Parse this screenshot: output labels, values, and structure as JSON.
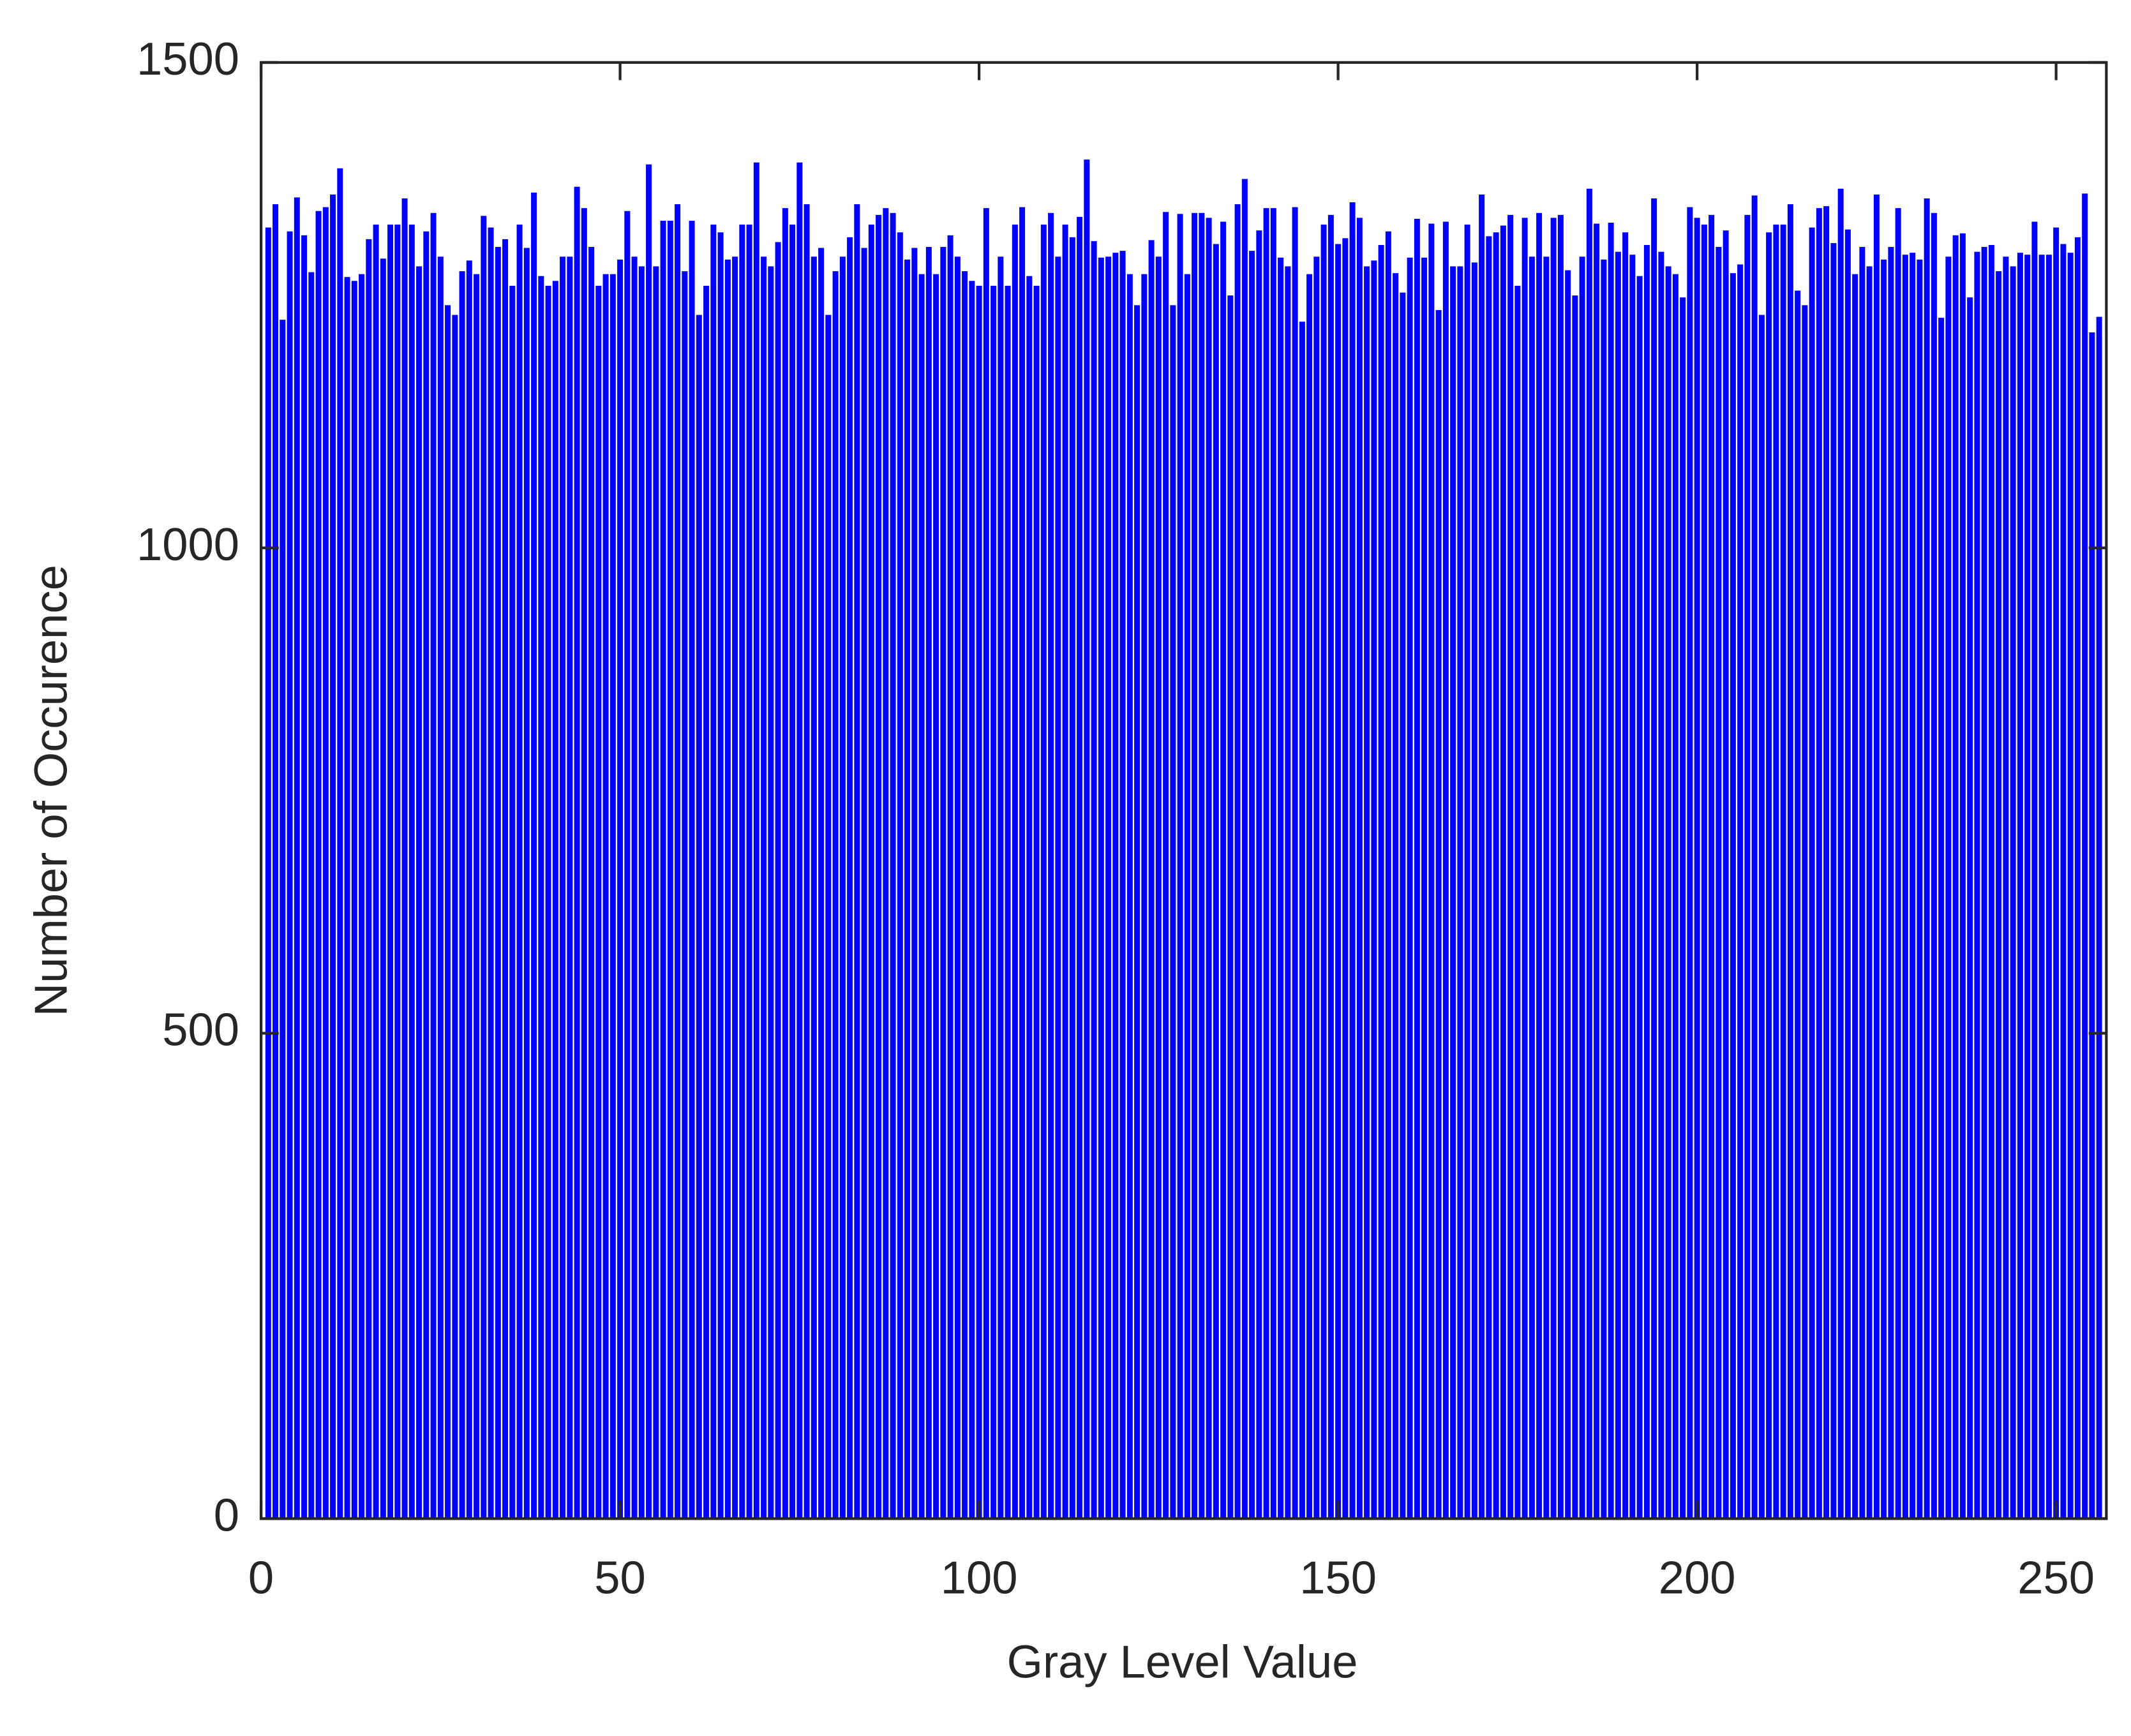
{
  "chart_data": {
    "type": "bar",
    "x_label": "Gray Level Value",
    "y_label": "Number of Occurence",
    "color": "#0000ff",
    "xlim": [
      0,
      257
    ],
    "xticks": [
      0,
      50,
      100,
      150,
      200,
      250
    ],
    "ylim": [
      0,
      1500
    ],
    "yticks": [
      0,
      500,
      1000,
      1500
    ],
    "x": [
      1,
      2,
      3,
      4,
      5,
      6,
      7,
      8,
      9,
      10,
      11,
      12,
      13,
      14,
      15,
      16,
      17,
      18,
      19,
      20,
      21,
      22,
      23,
      24,
      25,
      26,
      27,
      28,
      29,
      30,
      31,
      32,
      33,
      34,
      35,
      36,
      37,
      38,
      39,
      40,
      41,
      42,
      43,
      44,
      45,
      46,
      47,
      48,
      49,
      50,
      51,
      52,
      53,
      54,
      55,
      56,
      57,
      58,
      59,
      60,
      61,
      62,
      63,
      64,
      65,
      66,
      67,
      68,
      69,
      70,
      71,
      72,
      73,
      74,
      75,
      76,
      77,
      78,
      79,
      80,
      81,
      82,
      83,
      84,
      85,
      86,
      87,
      88,
      89,
      90,
      91,
      92,
      93,
      94,
      95,
      96,
      97,
      98,
      99,
      100,
      101,
      102,
      103,
      104,
      105,
      106,
      107,
      108,
      109,
      110,
      111,
      112,
      113,
      114,
      115,
      116,
      117,
      118,
      119,
      120,
      121,
      122,
      123,
      124,
      125,
      126,
      127,
      128,
      129,
      130,
      131,
      132,
      133,
      134,
      135,
      136,
      137,
      138,
      139,
      140,
      141,
      142,
      143,
      144,
      145,
      146,
      147,
      148,
      149,
      150,
      151,
      152,
      153,
      154,
      155,
      156,
      157,
      158,
      159,
      160,
      161,
      162,
      163,
      164,
      165,
      166,
      167,
      168,
      169,
      170,
      171,
      172,
      173,
      174,
      175,
      176,
      177,
      178,
      179,
      180,
      181,
      182,
      183,
      184,
      185,
      186,
      187,
      188,
      189,
      190,
      191,
      192,
      193,
      194,
      195,
      196,
      197,
      198,
      199,
      200,
      201,
      202,
      203,
      204,
      205,
      206,
      207,
      208,
      209,
      210,
      211,
      212,
      213,
      214,
      215,
      216,
      217,
      218,
      219,
      220,
      221,
      222,
      223,
      224,
      225,
      226,
      227,
      228,
      229,
      230,
      231,
      232,
      233,
      234,
      235,
      236,
      237,
      238,
      239,
      240,
      241,
      242,
      243,
      244,
      245,
      246,
      247,
      248,
      249,
      250,
      251,
      252,
      253,
      254,
      255,
      256
    ],
    "values": [
      1330,
      1354,
      1235,
      1326,
      1361,
      1322,
      1284,
      1347,
      1351,
      1364,
      1391,
      1279,
      1275,
      1282,
      1318,
      1333,
      1298,
      1333,
      1333,
      1360,
      1333,
      1290,
      1326,
      1345,
      1300,
      1250,
      1240,
      1285,
      1296,
      1282,
      1342,
      1330,
      1310,
      1318,
      1270,
      1333,
      1309,
      1366,
      1280,
      1270,
      1275,
      1300,
      1300,
      1372,
      1350,
      1310,
      1270,
      1282,
      1282,
      1297,
      1347,
      1300,
      1290,
      1395,
      1290,
      1337,
      1337,
      1354,
      1285,
      1337,
      1240,
      1270,
      1333,
      1325,
      1297,
      1300,
      1333,
      1333,
      1397,
      1300,
      1290,
      1315,
      1350,
      1333,
      1397,
      1354,
      1300,
      1309,
      1240,
      1285,
      1300,
      1320,
      1354,
      1309,
      1333,
      1343,
      1350,
      1345,
      1325,
      1297,
      1309,
      1282,
      1310,
      1282,
      1310,
      1322,
      1300,
      1285,
      1275,
      1270,
      1350,
      1270,
      1300,
      1270,
      1333,
      1351,
      1280,
      1270,
      1333,
      1345,
      1300,
      1333,
      1320,
      1341,
      1400,
      1316,
      1299,
      1300,
      1304,
      1306,
      1282,
      1250,
      1282,
      1317,
      1300,
      1346,
      1250,
      1344,
      1282,
      1345,
      1345,
      1340,
      1313,
      1336,
      1260,
      1354,
      1380,
      1306,
      1327,
      1350,
      1350,
      1299,
      1290,
      1351,
      1233,
      1282,
      1300,
      1333,
      1343,
      1313,
      1319,
      1356,
      1340,
      1290,
      1296,
      1312,
      1326,
      1283,
      1263,
      1299,
      1339,
      1299,
      1334,
      1245,
      1336,
      1290,
      1290,
      1333,
      1294,
      1364,
      1321,
      1325,
      1332,
      1343,
      1270,
      1340,
      1300,
      1345,
      1300,
      1340,
      1343,
      1286,
      1260,
      1300,
      1370,
      1334,
      1297,
      1335,
      1305,
      1325,
      1302,
      1280,
      1312,
      1360,
      1305,
      1290,
      1282,
      1258,
      1351,
      1340,
      1333,
      1343,
      1310,
      1327,
      1283,
      1292,
      1343,
      1363,
      1240,
      1325,
      1333,
      1333,
      1354,
      1265,
      1250,
      1330,
      1350,
      1352,
      1314,
      1370,
      1328,
      1282,
      1310,
      1290,
      1364,
      1297,
      1310,
      1350,
      1302,
      1304,
      1297,
      1360,
      1345,
      1237,
      1300,
      1322,
      1324,
      1258,
      1305,
      1310,
      1312,
      1285,
      1300,
      1290,
      1304,
      1302,
      1336,
      1302,
      1302,
      1330,
      1313,
      1304,
      1320,
      1365,
      1222,
      1238
    ]
  }
}
